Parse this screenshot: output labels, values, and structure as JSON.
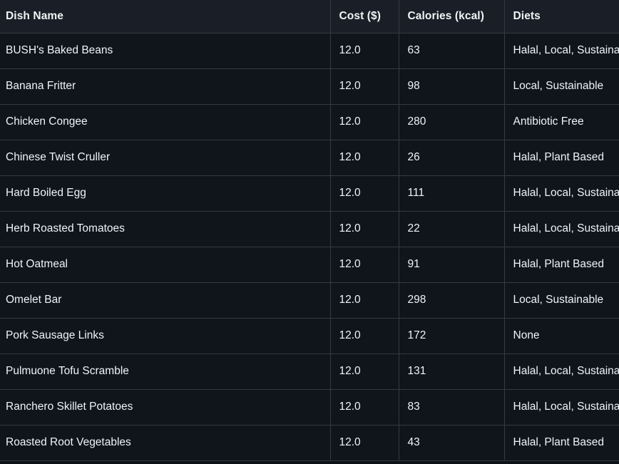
{
  "colors": {
    "page_bg": "#0d1117",
    "header_bg": "#1a1f27",
    "row_bg": "#10151c",
    "border": "#343a43",
    "text_primary": "#f0f3f6"
  },
  "table": {
    "columns": [
      {
        "label": "Dish Name"
      },
      {
        "label": "Cost ($)"
      },
      {
        "label": "Calories (kcal)"
      },
      {
        "label": "Diets"
      }
    ],
    "rows": [
      {
        "dish": "BUSH's Baked Beans",
        "cost": "12.0",
        "calories": "63",
        "diets": "Halal, Local, Sustainable"
      },
      {
        "dish": "Banana Fritter",
        "cost": "12.0",
        "calories": "98",
        "diets": "Local, Sustainable"
      },
      {
        "dish": "Chicken Congee",
        "cost": "12.0",
        "calories": "280",
        "diets": "Antibiotic Free"
      },
      {
        "dish": "Chinese Twist Cruller",
        "cost": "12.0",
        "calories": "26",
        "diets": "Halal, Plant Based"
      },
      {
        "dish": "Hard Boiled Egg",
        "cost": "12.0",
        "calories": "111",
        "diets": "Halal, Local, Sustainable"
      },
      {
        "dish": "Herb Roasted Tomatoes",
        "cost": "12.0",
        "calories": "22",
        "diets": "Halal, Local, Sustainable"
      },
      {
        "dish": "Hot Oatmeal",
        "cost": "12.0",
        "calories": "91",
        "diets": "Halal, Plant Based"
      },
      {
        "dish": "Omelet Bar",
        "cost": "12.0",
        "calories": "298",
        "diets": "Local, Sustainable"
      },
      {
        "dish": "Pork Sausage Links",
        "cost": "12.0",
        "calories": "172",
        "diets": "None"
      },
      {
        "dish": "Pulmuone Tofu Scramble",
        "cost": "12.0",
        "calories": "131",
        "diets": "Halal, Local, Sustainable"
      },
      {
        "dish": "Ranchero Skillet Potatoes",
        "cost": "12.0",
        "calories": "83",
        "diets": "Halal, Local, Sustainable"
      },
      {
        "dish": "Roasted Root Vegetables",
        "cost": "12.0",
        "calories": "43",
        "diets": "Halal, Plant Based"
      }
    ]
  }
}
